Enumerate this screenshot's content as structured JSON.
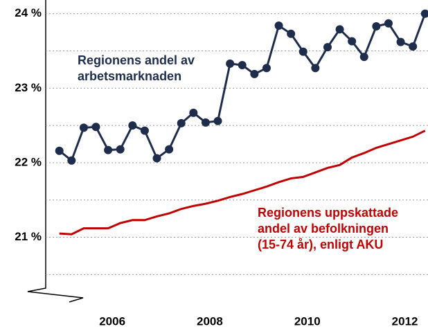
{
  "chart_data": {
    "type": "line",
    "x": [
      2005,
      2005.25,
      2005.5,
      2005.75,
      2006,
      2006.25,
      2006.5,
      2006.75,
      2007,
      2007.25,
      2007.5,
      2007.75,
      2008,
      2008.25,
      2008.5,
      2008.75,
      2009,
      2009.25,
      2009.5,
      2009.75,
      2010,
      2010.25,
      2010.5,
      2010.75,
      2011,
      2011.25,
      2011.5,
      2011.75,
      2012,
      2012.25,
      2012.5
    ],
    "series": [
      {
        "name": "Regionens andel av arbetsmarknaden",
        "color": "#1f2d4d",
        "markers": true,
        "label_lines": [
          "Regionens andel av",
          "arbetsmarknaden"
        ],
        "values": [
          22.16,
          22.03,
          22.47,
          22.48,
          22.17,
          22.18,
          22.5,
          22.43,
          22.06,
          22.18,
          22.53,
          22.67,
          22.54,
          22.56,
          23.33,
          23.31,
          23.19,
          23.27,
          23.84,
          23.73,
          23.49,
          23.27,
          23.55,
          23.79,
          23.63,
          23.42,
          23.83,
          23.87,
          23.62,
          23.56,
          24.0
        ]
      },
      {
        "name": "Regionens uppskattade andel av befolkningen (15-74 år), enligt AKU",
        "color": "#c00000",
        "markers": false,
        "label_lines": [
          "Regionens uppskattade",
          "andel av befolkningen",
          "(15-74 år), enligt AKU"
        ],
        "values": [
          21.05,
          21.04,
          21.12,
          21.12,
          21.12,
          21.19,
          21.23,
          21.23,
          21.28,
          21.32,
          21.38,
          21.42,
          21.45,
          21.49,
          21.54,
          21.58,
          21.63,
          21.68,
          21.74,
          21.79,
          21.81,
          21.87,
          21.93,
          21.97,
          22.07,
          22.13,
          22.2,
          22.25,
          22.3,
          22.35,
          22.43
        ]
      }
    ],
    "xlim": [
      2004.72,
      2012.56
    ],
    "xticks": [
      2006,
      2008,
      2010,
      2012
    ],
    "ylim": [
      20.28,
      24.1
    ],
    "yticks": [
      {
        "value": 21,
        "label": "21 %"
      },
      {
        "value": 22,
        "label": "22 %"
      },
      {
        "value": 23,
        "label": "23 %"
      },
      {
        "value": 24,
        "label": "24 %"
      }
    ],
    "minor_yticks": [
      20.5,
      21.5,
      22.5,
      23.5
    ],
    "grid": true
  }
}
